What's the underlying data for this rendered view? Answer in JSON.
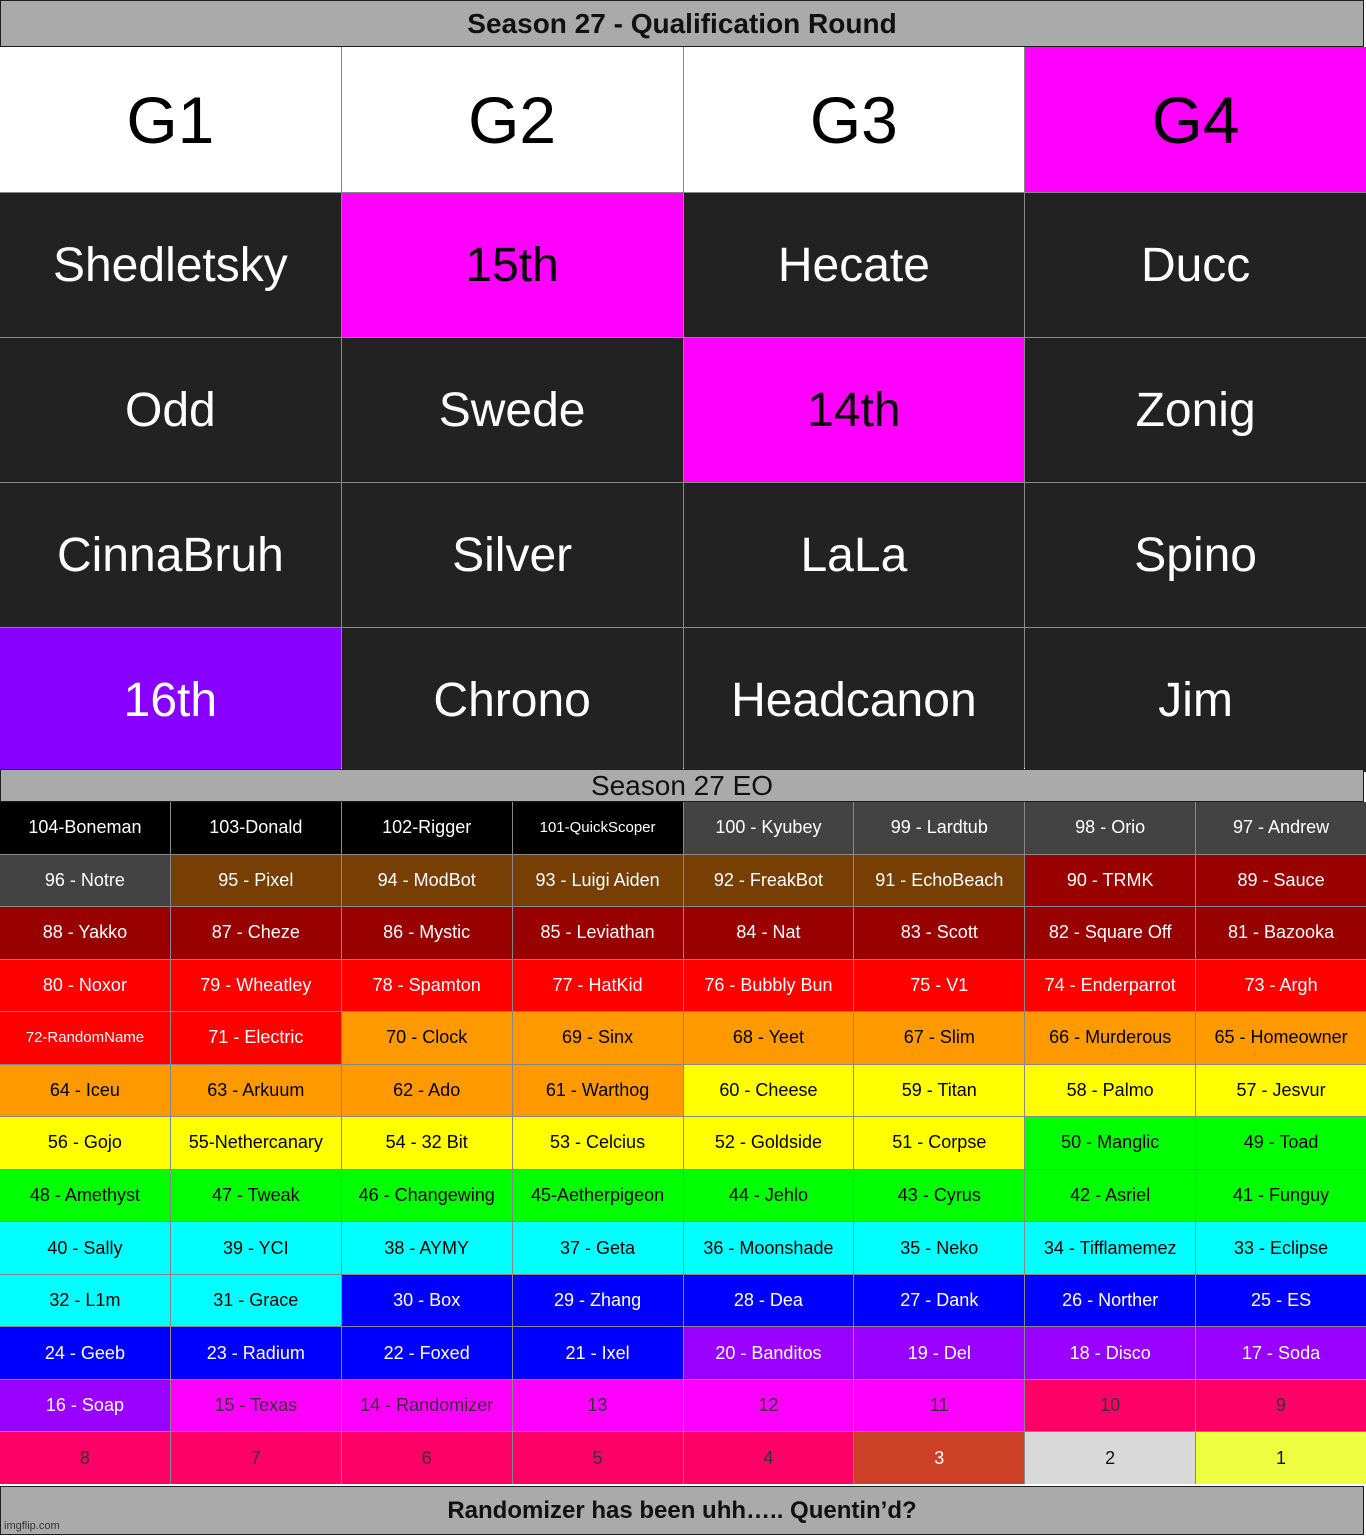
{
  "top_title": "Season 27 - Qualification Round",
  "qualification": {
    "headers": [
      {
        "label": "G1",
        "bg": "#ffffff"
      },
      {
        "label": "G2",
        "bg": "#ffffff"
      },
      {
        "label": "G3",
        "bg": "#ffffff"
      },
      {
        "label": "G4",
        "bg": "#ff00ff"
      }
    ],
    "rows": [
      [
        {
          "label": "Shedletsky",
          "bg": "#222222",
          "fg": "#ffffff"
        },
        {
          "label": "15th",
          "bg": "#ff00ff",
          "fg": "#000000"
        },
        {
          "label": "Hecate",
          "bg": "#222222",
          "fg": "#ffffff"
        },
        {
          "label": "Ducc",
          "bg": "#222222",
          "fg": "#ffffff"
        }
      ],
      [
        {
          "label": "Odd",
          "bg": "#222222",
          "fg": "#ffffff"
        },
        {
          "label": "Swede",
          "bg": "#222222",
          "fg": "#ffffff"
        },
        {
          "label": "14th",
          "bg": "#ff00ff",
          "fg": "#000000"
        },
        {
          "label": "Zonig",
          "bg": "#222222",
          "fg": "#ffffff"
        }
      ],
      [
        {
          "label": "CinnaBruh",
          "bg": "#222222",
          "fg": "#ffffff"
        },
        {
          "label": "Silver",
          "bg": "#222222",
          "fg": "#ffffff"
        },
        {
          "label": "LaLa",
          "bg": "#222222",
          "fg": "#ffffff"
        },
        {
          "label": "Spino",
          "bg": "#222222",
          "fg": "#ffffff"
        }
      ],
      [
        {
          "label": "16th",
          "bg": "#8800ff",
          "fg": "#ffffff"
        },
        {
          "label": "Chrono",
          "bg": "#222222",
          "fg": "#ffffff"
        },
        {
          "label": "Headcanon",
          "bg": "#222222",
          "fg": "#ffffff"
        },
        {
          "label": "Jim",
          "bg": "#222222",
          "fg": "#ffffff"
        }
      ]
    ]
  },
  "eo_title": "Season 27 EO",
  "eo_rows": [
    [
      {
        "label": "104-Boneman",
        "bg": "#000000",
        "fg": "#ffffff"
      },
      {
        "label": "103-Donald",
        "bg": "#000000",
        "fg": "#ffffff"
      },
      {
        "label": "102-Rigger",
        "bg": "#000000",
        "fg": "#ffffff"
      },
      {
        "label": "101-QuickScoper",
        "bg": "#000000",
        "fg": "#ffffff",
        "small": true
      },
      {
        "label": "100 - Kyubey",
        "bg": "#434343",
        "fg": "#ffffff"
      },
      {
        "label": "99 - Lardtub",
        "bg": "#434343",
        "fg": "#ffffff"
      },
      {
        "label": "98 - Orio",
        "bg": "#434343",
        "fg": "#ffffff"
      },
      {
        "label": "97 - Andrew",
        "bg": "#434343",
        "fg": "#ffffff"
      }
    ],
    [
      {
        "label": "96 - Notre",
        "bg": "#434343",
        "fg": "#ffffff"
      },
      {
        "label": "95 - Pixel",
        "bg": "#783f04",
        "fg": "#ffffff"
      },
      {
        "label": "94 - ModBot",
        "bg": "#783f04",
        "fg": "#ffffff"
      },
      {
        "label": "93 - Luigi Aiden",
        "bg": "#783f04",
        "fg": "#ffffff"
      },
      {
        "label": "92 - FreakBot",
        "bg": "#783f04",
        "fg": "#ffffff"
      },
      {
        "label": "91 - EchoBeach",
        "bg": "#783f04",
        "fg": "#ffffff"
      },
      {
        "label": "90 - TRMK",
        "bg": "#990000",
        "fg": "#ffffff"
      },
      {
        "label": "89 - Sauce",
        "bg": "#990000",
        "fg": "#ffffff"
      }
    ],
    [
      {
        "label": "88 - Yakko",
        "bg": "#990000",
        "fg": "#ffffff"
      },
      {
        "label": "87 - Cheze",
        "bg": "#990000",
        "fg": "#ffffff"
      },
      {
        "label": "86 - Mystic",
        "bg": "#990000",
        "fg": "#ffffff"
      },
      {
        "label": "85 - Leviathan",
        "bg": "#990000",
        "fg": "#ffffff"
      },
      {
        "label": "84 - Nat",
        "bg": "#990000",
        "fg": "#ffffff"
      },
      {
        "label": "83 - Scott",
        "bg": "#990000",
        "fg": "#ffffff"
      },
      {
        "label": "82 - Square Off",
        "bg": "#990000",
        "fg": "#ffffff"
      },
      {
        "label": "81 - Bazooka",
        "bg": "#990000",
        "fg": "#ffffff"
      }
    ],
    [
      {
        "label": "80 - Noxor",
        "bg": "#ff0000",
        "fg": "#ffffff"
      },
      {
        "label": "79 - Wheatley",
        "bg": "#ff0000",
        "fg": "#ffffff"
      },
      {
        "label": "78 - Spamton",
        "bg": "#ff0000",
        "fg": "#ffffff"
      },
      {
        "label": "77 - HatKid",
        "bg": "#ff0000",
        "fg": "#ffffff"
      },
      {
        "label": "76 - Bubbly Bun",
        "bg": "#ff0000",
        "fg": "#ffffff"
      },
      {
        "label": "75 - V1",
        "bg": "#ff0000",
        "fg": "#ffffff"
      },
      {
        "label": "74 - Enderparrot",
        "bg": "#ff0000",
        "fg": "#ffffff"
      },
      {
        "label": "73 - Argh",
        "bg": "#ff0000",
        "fg": "#ffffff"
      }
    ],
    [
      {
        "label": "72-RandomName",
        "bg": "#ff0000",
        "fg": "#ffffff",
        "small": true
      },
      {
        "label": "71 - Electric",
        "bg": "#ff0000",
        "fg": "#ffffff"
      },
      {
        "label": "70 - Clock",
        "bg": "#ff9900",
        "fg": "#000000"
      },
      {
        "label": "69 - Sinx",
        "bg": "#ff9900",
        "fg": "#000000"
      },
      {
        "label": "68 - Yeet",
        "bg": "#ff9900",
        "fg": "#000000"
      },
      {
        "label": "67 - Slim",
        "bg": "#ff9900",
        "fg": "#000000"
      },
      {
        "label": "66 - Murderous",
        "bg": "#ff9900",
        "fg": "#000000"
      },
      {
        "label": "65 - Homeowner",
        "bg": "#ff9900",
        "fg": "#000000"
      }
    ],
    [
      {
        "label": "64 - Iceu",
        "bg": "#ff9900",
        "fg": "#000000"
      },
      {
        "label": "63 - Arkuum",
        "bg": "#ff9900",
        "fg": "#000000"
      },
      {
        "label": "62 - Ado",
        "bg": "#ff9900",
        "fg": "#000000"
      },
      {
        "label": "61 - Warthog",
        "bg": "#ff9900",
        "fg": "#000000"
      },
      {
        "label": "60 - Cheese",
        "bg": "#ffff00",
        "fg": "#000000"
      },
      {
        "label": "59 - Titan",
        "bg": "#ffff00",
        "fg": "#000000"
      },
      {
        "label": "58 - Palmo",
        "bg": "#ffff00",
        "fg": "#000000"
      },
      {
        "label": "57 - Jesvur",
        "bg": "#ffff00",
        "fg": "#000000"
      }
    ],
    [
      {
        "label": "56 - Gojo",
        "bg": "#ffff00",
        "fg": "#000000"
      },
      {
        "label": "55-Nethercanary",
        "bg": "#ffff00",
        "fg": "#000000"
      },
      {
        "label": "54 - 32 Bit",
        "bg": "#ffff00",
        "fg": "#000000"
      },
      {
        "label": "53 - Celcius",
        "bg": "#ffff00",
        "fg": "#000000"
      },
      {
        "label": "52 - Goldside",
        "bg": "#ffff00",
        "fg": "#000000"
      },
      {
        "label": "51 - Corpse",
        "bg": "#ffff00",
        "fg": "#000000"
      },
      {
        "label": "50 - Manglic",
        "bg": "#00ff00",
        "fg": "#000000"
      },
      {
        "label": "49 - Toad",
        "bg": "#00ff00",
        "fg": "#000000"
      }
    ],
    [
      {
        "label": "48 - Amethyst",
        "bg": "#00ff00",
        "fg": "#000000"
      },
      {
        "label": "47 - Tweak",
        "bg": "#00ff00",
        "fg": "#000000"
      },
      {
        "label": "46 - Changewing",
        "bg": "#00ff00",
        "fg": "#000000"
      },
      {
        "label": "45-Aetherpigeon",
        "bg": "#00ff00",
        "fg": "#000000"
      },
      {
        "label": "44 - Jehlo",
        "bg": "#00ff00",
        "fg": "#000000"
      },
      {
        "label": "43 - Cyrus",
        "bg": "#00ff00",
        "fg": "#000000"
      },
      {
        "label": "42 - Asriel",
        "bg": "#00ff00",
        "fg": "#000000"
      },
      {
        "label": "41 - Funguy",
        "bg": "#00ff00",
        "fg": "#000000"
      }
    ],
    [
      {
        "label": "40 - Sally",
        "bg": "#00ffff",
        "fg": "#000000"
      },
      {
        "label": "39 - YCI",
        "bg": "#00ffff",
        "fg": "#000000"
      },
      {
        "label": "38 - AYMY",
        "bg": "#00ffff",
        "fg": "#000000"
      },
      {
        "label": "37 - Geta",
        "bg": "#00ffff",
        "fg": "#000000"
      },
      {
        "label": "36 - Moonshade",
        "bg": "#00ffff",
        "fg": "#000000"
      },
      {
        "label": "35 - Neko",
        "bg": "#00ffff",
        "fg": "#000000"
      },
      {
        "label": "34 - Tifflamemez",
        "bg": "#00ffff",
        "fg": "#000000"
      },
      {
        "label": "33 - Eclipse",
        "bg": "#00ffff",
        "fg": "#000000"
      }
    ],
    [
      {
        "label": "32 - L1m",
        "bg": "#00ffff",
        "fg": "#000000"
      },
      {
        "label": "31 - Grace",
        "bg": "#00ffff",
        "fg": "#000000"
      },
      {
        "label": "30 - Box",
        "bg": "#0000ff",
        "fg": "#ffffff"
      },
      {
        "label": "29 - Zhang",
        "bg": "#0000ff",
        "fg": "#ffffff"
      },
      {
        "label": "28 - Dea",
        "bg": "#0000ff",
        "fg": "#ffffff"
      },
      {
        "label": "27 - Dank",
        "bg": "#0000ff",
        "fg": "#ffffff"
      },
      {
        "label": "26 - Norther",
        "bg": "#0000ff",
        "fg": "#ffffff"
      },
      {
        "label": "25 - ES",
        "bg": "#0000ff",
        "fg": "#ffffff"
      }
    ],
    [
      {
        "label": "24 - Geeb",
        "bg": "#0000ff",
        "fg": "#ffffff"
      },
      {
        "label": "23 - Radium",
        "bg": "#0000ff",
        "fg": "#ffffff"
      },
      {
        "label": "22 - Foxed",
        "bg": "#0000ff",
        "fg": "#ffffff"
      },
      {
        "label": "21 - Ixel",
        "bg": "#0000ff",
        "fg": "#ffffff"
      },
      {
        "label": "20 - Banditos",
        "bg": "#9900ff",
        "fg": "#ffffff"
      },
      {
        "label": "19 - Del",
        "bg": "#9900ff",
        "fg": "#ffffff"
      },
      {
        "label": "18 - Disco",
        "bg": "#9900ff",
        "fg": "#ffffff"
      },
      {
        "label": "17 - Soda",
        "bg": "#9900ff",
        "fg": "#ffffff"
      }
    ],
    [
      {
        "label": "16 - Soap",
        "bg": "#9900ff",
        "fg": "#ffffff"
      },
      {
        "label": "15 - Texas",
        "bg": "#ff00ff",
        "fg": "#333333"
      },
      {
        "label": "14 - Randomizer",
        "bg": "#ff00ff",
        "fg": "#333333"
      },
      {
        "label": "13",
        "bg": "#ff00ff",
        "fg": "#333333"
      },
      {
        "label": "12",
        "bg": "#ff00ff",
        "fg": "#333333"
      },
      {
        "label": "11",
        "bg": "#ff00ff",
        "fg": "#333333"
      },
      {
        "label": "10",
        "bg": "#ff0066",
        "fg": "#333333"
      },
      {
        "label": "9",
        "bg": "#ff0066",
        "fg": "#333333"
      }
    ],
    [
      {
        "label": "8",
        "bg": "#ff0066",
        "fg": "#333333"
      },
      {
        "label": "7",
        "bg": "#ff0066",
        "fg": "#333333"
      },
      {
        "label": "6",
        "bg": "#ff0066",
        "fg": "#333333"
      },
      {
        "label": "5",
        "bg": "#ff0066",
        "fg": "#333333"
      },
      {
        "label": "4",
        "bg": "#ff0066",
        "fg": "#333333"
      },
      {
        "label": "3",
        "bg": "#cc4125",
        "fg": "#ffffff"
      },
      {
        "label": "2",
        "bg": "#d9d9d9",
        "fg": "#111111"
      },
      {
        "label": "1",
        "bg": "#eeff41",
        "fg": "#111111"
      }
    ]
  ],
  "bottom_title": "Randomizer has been uhh….. Quentin’d?",
  "watermark": "imgflip.com"
}
